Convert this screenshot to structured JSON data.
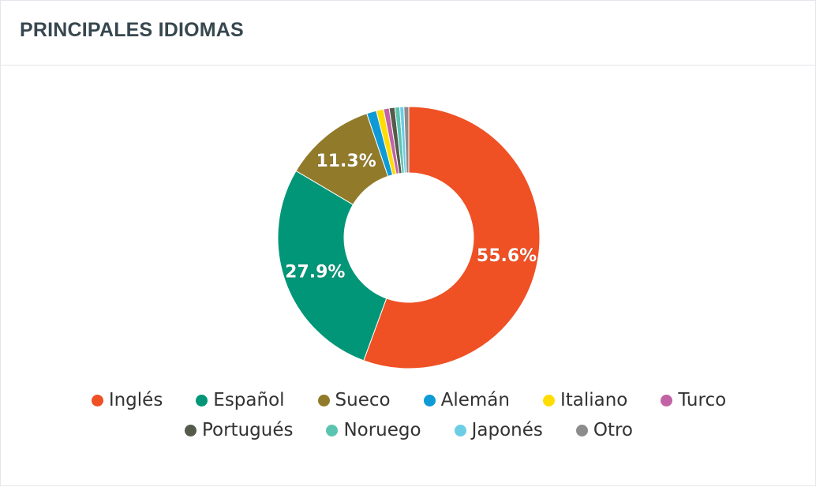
{
  "header": {
    "title": "PRINCIPALES IDIOMAS"
  },
  "chart_data": {
    "type": "pie",
    "title": "PRINCIPALES IDIOMAS",
    "donut": true,
    "legend_position": "bottom",
    "categories": [
      "Inglés",
      "Español",
      "Sueco",
      "Alemán",
      "Italiano",
      "Turco",
      "Portugués",
      "Noruego",
      "Japonés",
      "Otro"
    ],
    "values": [
      55.6,
      27.9,
      11.3,
      1.2,
      0.9,
      0.7,
      0.7,
      0.6,
      0.5,
      0.6
    ],
    "data_labels": [
      "55.6%",
      "27.9%",
      "11.3%",
      "",
      "",
      "",
      "",
      "",
      "",
      ""
    ],
    "colors": [
      "#ef5024",
      "#009677",
      "#917b2a",
      "#0d9ad7",
      "#ffdd00",
      "#c263a5",
      "#555b4a",
      "#5bc4b1",
      "#6ccde5",
      "#8c8c8c"
    ]
  },
  "legend": {
    "rows": [
      [
        0,
        1,
        2,
        3,
        4,
        5
      ],
      [
        6,
        7,
        8,
        9
      ]
    ]
  }
}
